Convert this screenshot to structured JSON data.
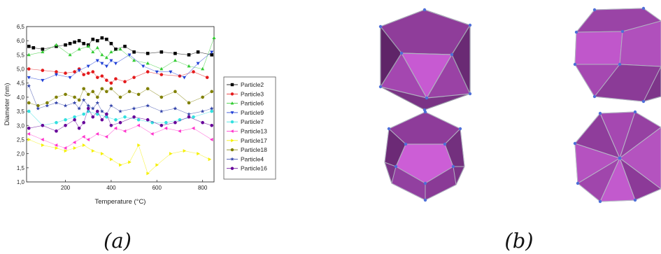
{
  "panel_labels": [
    "(a)",
    "(b)"
  ],
  "chart_data": {
    "type": "scatter",
    "title": "",
    "xlabel": "Temperature (°C)",
    "ylabel": "Diameter (nm)",
    "xlim": [
      30,
      850
    ],
    "ylim": [
      1.0,
      6.5
    ],
    "xticks": [
      200,
      400,
      600,
      800
    ],
    "yticks": [
      1.0,
      1.5,
      2.0,
      2.5,
      3.0,
      3.5,
      4.0,
      4.5,
      5.0,
      5.5,
      6.0,
      6.5
    ],
    "ytick_labels": [
      "1,0",
      "1,5",
      "2,0",
      "2,5",
      "3,0",
      "3,5",
      "4,0",
      "4,5",
      "5,0",
      "5,5",
      "6,0",
      "6,5"
    ],
    "legend_position": "right-outside",
    "series": [
      {
        "name": "Particle2",
        "color": "#000000",
        "marker": "square",
        "x": [
          40,
          60,
          100,
          160,
          200,
          220,
          240,
          260,
          280,
          300,
          320,
          340,
          360,
          380,
          400,
          420,
          460,
          500,
          560,
          620,
          680,
          740,
          780,
          840
        ],
        "y": [
          5.8,
          5.75,
          5.7,
          5.8,
          5.85,
          5.9,
          5.95,
          6.0,
          5.9,
          5.85,
          6.05,
          6.0,
          6.1,
          6.05,
          5.9,
          5.7,
          5.8,
          5.6,
          5.55,
          5.6,
          5.55,
          5.5,
          5.6,
          5.5
        ]
      },
      {
        "name": "Particle3",
        "color": "#e41a1c",
        "marker": "circle",
        "x": [
          40,
          100,
          160,
          200,
          240,
          260,
          280,
          300,
          320,
          340,
          360,
          380,
          400,
          420,
          460,
          500,
          560,
          620,
          700,
          760,
          820
        ],
        "y": [
          5.0,
          4.95,
          4.9,
          4.85,
          4.9,
          5.0,
          4.8,
          4.85,
          4.9,
          4.7,
          4.75,
          4.6,
          4.5,
          4.65,
          4.55,
          4.7,
          4.9,
          4.8,
          4.75,
          4.9,
          4.7
        ]
      },
      {
        "name": "Particle6",
        "color": "#33cc33",
        "marker": "triangle-up",
        "x": [
          40,
          100,
          160,
          220,
          260,
          300,
          320,
          340,
          360,
          380,
          400,
          440,
          500,
          560,
          620,
          680,
          740,
          800,
          850
        ],
        "y": [
          5.5,
          5.6,
          5.85,
          5.5,
          5.7,
          5.8,
          5.6,
          5.75,
          5.5,
          5.4,
          5.6,
          5.7,
          5.3,
          5.2,
          5.0,
          5.3,
          5.1,
          5.0,
          6.1
        ]
      },
      {
        "name": "Particle9",
        "color": "#1f3fd6",
        "marker": "triangle-down",
        "x": [
          40,
          100,
          160,
          220,
          260,
          300,
          340,
          360,
          380,
          400,
          420,
          480,
          540,
          600,
          660,
          720,
          780,
          840
        ],
        "y": [
          4.7,
          4.6,
          4.8,
          4.7,
          4.95,
          5.1,
          5.3,
          5.2,
          5.1,
          5.3,
          5.2,
          5.5,
          5.1,
          4.9,
          4.9,
          4.7,
          5.2,
          5.6
        ]
      },
      {
        "name": "Particle7",
        "color": "#33e0e0",
        "marker": "circle",
        "x": [
          40,
          100,
          160,
          200,
          240,
          280,
          300,
          340,
          380,
          420,
          460,
          520,
          580,
          640,
          700,
          760,
          840
        ],
        "y": [
          3.5,
          3.0,
          3.1,
          3.2,
          3.3,
          3.4,
          3.5,
          3.4,
          3.3,
          3.2,
          3.3,
          3.2,
          3.1,
          3.1,
          3.2,
          3.3,
          3.5
        ]
      },
      {
        "name": "Particle13",
        "color": "#ff33cc",
        "marker": "triangle-left",
        "x": [
          40,
          100,
          160,
          200,
          240,
          280,
          300,
          340,
          380,
          420,
          460,
          520,
          580,
          640,
          700,
          760,
          840
        ],
        "y": [
          2.7,
          2.5,
          2.3,
          2.2,
          2.4,
          2.6,
          2.5,
          2.7,
          2.6,
          2.9,
          2.8,
          3.0,
          2.7,
          2.9,
          2.8,
          2.9,
          2.5
        ]
      },
      {
        "name": "Particle17",
        "color": "#f5f000",
        "marker": "triangle-right",
        "x": [
          40,
          100,
          160,
          200,
          240,
          280,
          320,
          360,
          400,
          440,
          480,
          520,
          560,
          600,
          660,
          720,
          780,
          830
        ],
        "y": [
          2.5,
          2.3,
          2.2,
          2.1,
          2.2,
          2.3,
          2.1,
          2.0,
          1.8,
          1.6,
          1.7,
          2.3,
          1.3,
          1.6,
          2.0,
          2.1,
          2.0,
          1.8
        ]
      },
      {
        "name": "Particle18",
        "color": "#808000",
        "marker": "circle",
        "x": [
          40,
          80,
          120,
          160,
          200,
          240,
          260,
          280,
          300,
          320,
          340,
          360,
          380,
          400,
          440,
          480,
          520,
          560,
          620,
          680,
          740,
          800,
          840
        ],
        "y": [
          3.8,
          3.7,
          3.8,
          4.0,
          4.1,
          4.0,
          3.9,
          4.3,
          4.1,
          4.2,
          4.0,
          4.3,
          4.2,
          4.3,
          4.0,
          4.2,
          4.1,
          4.3,
          4.0,
          4.2,
          3.8,
          4.0,
          4.2
        ]
      },
      {
        "name": "Particle4",
        "color": "#3344aa",
        "marker": "star",
        "x": [
          40,
          80,
          120,
          160,
          200,
          240,
          260,
          280,
          300,
          320,
          340,
          360,
          380,
          400,
          440,
          500,
          560,
          620,
          680,
          740,
          800,
          840
        ],
        "y": [
          4.4,
          3.6,
          3.7,
          3.8,
          3.7,
          3.8,
          3.6,
          3.9,
          3.7,
          3.6,
          3.8,
          3.5,
          3.4,
          3.7,
          3.5,
          3.6,
          3.7,
          3.5,
          3.6,
          3.4,
          3.5,
          3.6
        ]
      },
      {
        "name": "Particle16",
        "color": "#660099",
        "marker": "circle",
        "x": [
          40,
          100,
          160,
          200,
          240,
          260,
          280,
          300,
          320,
          340,
          360,
          380,
          400,
          440,
          500,
          560,
          620,
          680,
          740,
          800,
          840
        ],
        "y": [
          2.9,
          3.0,
          2.8,
          3.0,
          3.2,
          2.9,
          3.1,
          3.6,
          3.3,
          3.5,
          3.2,
          3.4,
          3.0,
          3.1,
          3.3,
          3.2,
          3.0,
          3.1,
          3.3,
          3.1,
          3.0
        ]
      }
    ]
  }
}
